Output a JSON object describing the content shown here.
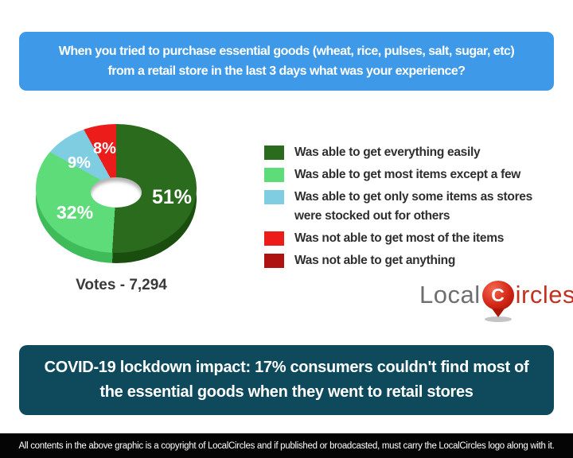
{
  "header": {
    "question": "When you tried to purchase essential goods (wheat, rice, pulses, salt, sugar, etc) from a retail store in the last 3 days what was your experience?",
    "lines": [
      "When you tried to purchase essential goods (wheat, rice, pulses, salt, sugar, etc)",
      "from a retail store in the last 3 days what was your experience?"
    ]
  },
  "chart_data": {
    "type": "pie",
    "style": "3d-donut",
    "title": "",
    "labels": [
      "Was able to get everything easily",
      "Was able to get most items except a few",
      "Was able to get only some items as stores were stocked out for others",
      "Was not able to get most of the items",
      "Was not able to get anything"
    ],
    "values": [
      51,
      32,
      9,
      8,
      0
    ],
    "percent_labels": [
      "51%",
      "32%",
      "9%",
      "8%"
    ],
    "colors": [
      "#2A6B1D",
      "#5FDC7A",
      "#7FCDE0",
      "#EC1C1A",
      "#AF1311"
    ],
    "depth_colors": [
      "#1A4E0F",
      "#3FBC59",
      "#58A9BF",
      "#B31310",
      "#7A0D0B"
    ],
    "legend_position": "right",
    "votes_label": "Votes - 7,294"
  },
  "logo": {
    "part1": "Local",
    "pin_letter": "C",
    "part2": "ircles"
  },
  "impact": {
    "statement": "COVID-19 lockdown impact: 17% consumers couldn't find most of the essential goods when they went to retail stores",
    "lines": [
      "COVID-19 lockdown impact: 17% consumers couldn't find most of",
      "the essential goods when they went to retail stores"
    ]
  },
  "footer": {
    "copyright": "All contents in the above graphic is a copyright of LocalCircles and if published or broadcasted, must carry the LocalCircles logo along with it."
  },
  "colors": {
    "header_bg": "#3E9AE9",
    "impact_bg": "#0E4A5C",
    "footer_bg": "#050505",
    "votes_text": "#3A3A3A",
    "legend_text": "#2F2F2F",
    "logo_gray": "#6E6F71",
    "logo_red": "#C5301F"
  }
}
